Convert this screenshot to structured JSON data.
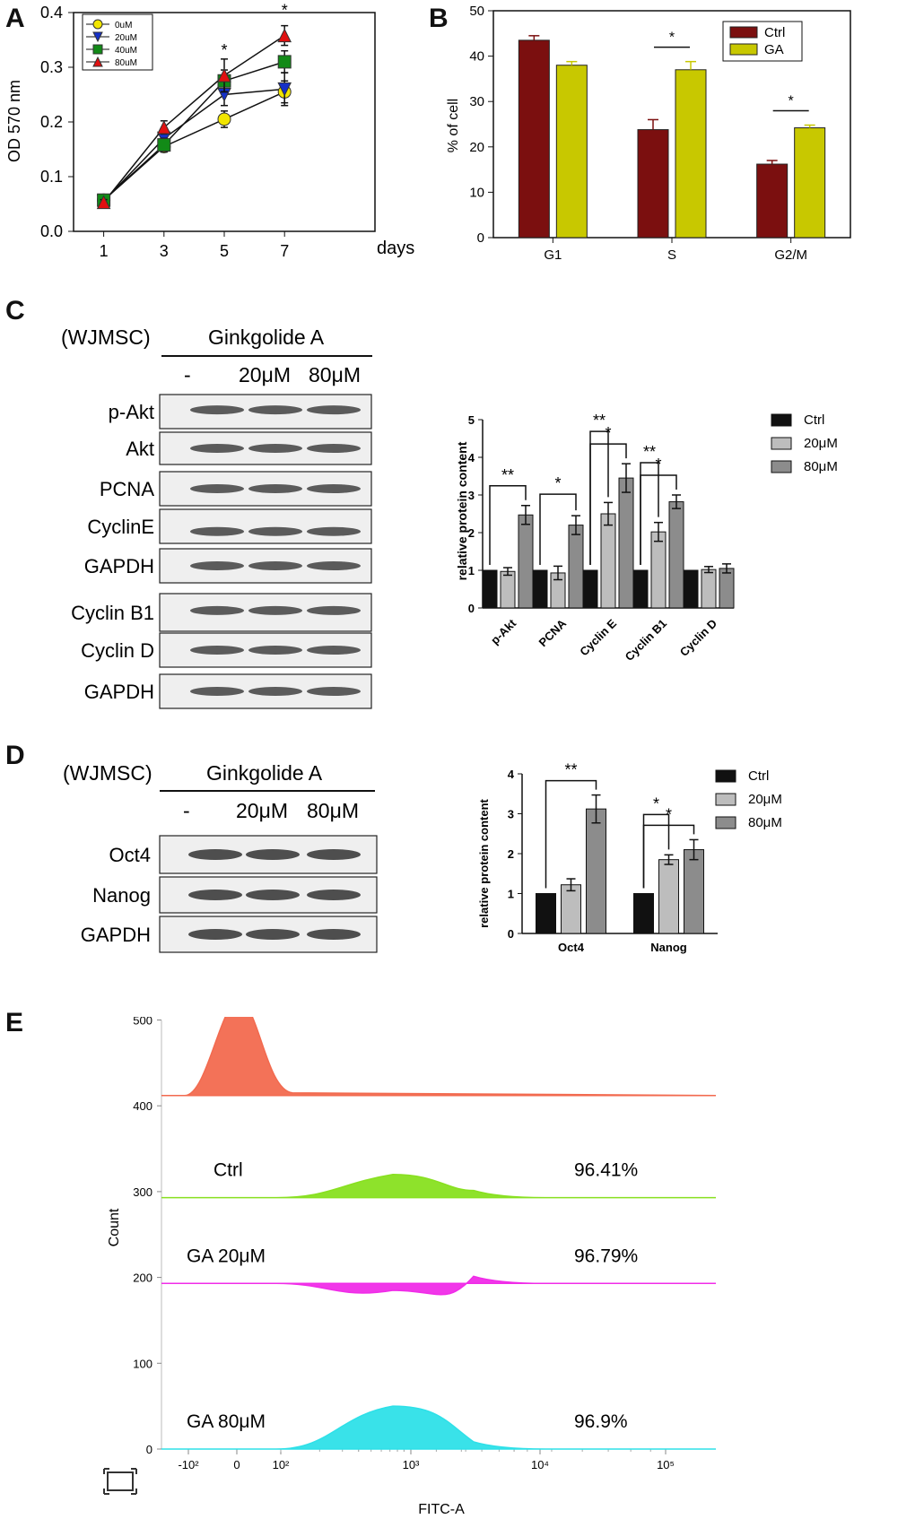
{
  "panels": {
    "A": "A",
    "B": "B",
    "C": "C",
    "D": "D",
    "E": "E"
  },
  "chart_data": [
    {
      "id": "A",
      "type": "line",
      "ylabel": "OD 570 nm",
      "xlabel": "days",
      "x": [
        1,
        3,
        5,
        7
      ],
      "xlim": [
        0,
        10
      ],
      "ylim": [
        0,
        0.4
      ],
      "yticks": [
        "0.0",
        "0.1",
        "0.2",
        "0.3",
        "0.4"
      ],
      "legend_position": "top-left",
      "series": [
        {
          "name": "0uM",
          "values": [
            0.057,
            0.155,
            0.205,
            0.255
          ],
          "errors": [
            0.005,
            0.01,
            0.015,
            0.02
          ],
          "color": "#f2e600",
          "marker": "circle"
        },
        {
          "name": "20uM",
          "values": [
            0.055,
            0.17,
            0.25,
            0.26
          ],
          "errors": [
            0.005,
            0.01,
            0.02,
            0.03
          ],
          "color": "#1530c8",
          "marker": "triangle-down"
        },
        {
          "name": "40uM",
          "values": [
            0.057,
            0.158,
            0.275,
            0.31
          ],
          "errors": [
            0.005,
            0.012,
            0.02,
            0.02
          ],
          "color": "#128a17",
          "marker": "square"
        },
        {
          "name": "80uM",
          "values": [
            0.053,
            0.19,
            0.285,
            0.358
          ],
          "errors": [
            0.005,
            0.012,
            0.03,
            0.018
          ],
          "color": "#e01010",
          "marker": "triangle-up"
        }
      ],
      "annotations": [
        {
          "x": 5,
          "text": "*"
        },
        {
          "x": 7,
          "text": "*"
        }
      ]
    },
    {
      "id": "B",
      "type": "bar",
      "ylabel": "% of cell",
      "categories": [
        "G1",
        "S",
        "G2/M"
      ],
      "ylim": [
        0,
        50
      ],
      "yticks": [
        "0",
        "10",
        "20",
        "30",
        "40",
        "50"
      ],
      "legend_position": "top-right",
      "series": [
        {
          "name": "Ctrl",
          "values": [
            43.5,
            23.8,
            16.2
          ],
          "errors": [
            1.0,
            2.2,
            0.8
          ],
          "color": "#7b0f0f"
        },
        {
          "name": "GA",
          "values": [
            38.0,
            37.0,
            24.2
          ],
          "errors": [
            0.8,
            1.8,
            0.6
          ],
          "color": "#c8c800"
        }
      ],
      "annotations": [
        {
          "category": "S",
          "text": "*"
        },
        {
          "category": "G2/M",
          "text": "*"
        }
      ]
    },
    {
      "id": "C",
      "type": "bar",
      "ylabel": "relative protein content",
      "categories": [
        "p-Akt",
        "PCNA",
        "Cyclin E",
        "Cyclin B1",
        "Cyclin D"
      ],
      "ylim": [
        0,
        5
      ],
      "yticks": [
        "0",
        "1",
        "2",
        "3",
        "4",
        "5"
      ],
      "legend_position": "top-right",
      "series": [
        {
          "name": "Ctrl",
          "values": [
            1.0,
            1.0,
            1.0,
            1.0,
            1.0
          ],
          "errors": [
            0,
            0,
            0,
            0,
            0
          ],
          "color": "#111111"
        },
        {
          "name": "20μM",
          "values": [
            0.97,
            0.93,
            2.5,
            2.02,
            1.02
          ],
          "errors": [
            0.1,
            0.18,
            0.3,
            0.25,
            0.08
          ],
          "color": "#bdbdbd"
        },
        {
          "name": "80μM",
          "values": [
            2.47,
            2.2,
            3.45,
            2.82,
            1.05
          ],
          "errors": [
            0.25,
            0.25,
            0.38,
            0.18,
            0.12
          ],
          "color": "#8c8c8c"
        }
      ],
      "annotations": [
        "**",
        "*",
        "**",
        "*",
        "**",
        "*"
      ]
    },
    {
      "id": "D",
      "type": "bar",
      "ylabel": "relative protein content",
      "categories": [
        "Oct4",
        "Nanog"
      ],
      "ylim": [
        0,
        4
      ],
      "yticks": [
        "0",
        "1",
        "2",
        "3",
        "4"
      ],
      "legend_position": "top-right",
      "series": [
        {
          "name": "Ctrl",
          "values": [
            1.0,
            1.0
          ],
          "errors": [
            0,
            0
          ],
          "color": "#111111"
        },
        {
          "name": "20μM",
          "values": [
            1.22,
            1.85
          ],
          "errors": [
            0.15,
            0.12
          ],
          "color": "#bdbdbd"
        },
        {
          "name": "80μM",
          "values": [
            3.12,
            2.1
          ],
          "errors": [
            0.35,
            0.25
          ],
          "color": "#8c8c8c"
        }
      ],
      "annotations": [
        "**",
        "*",
        "*"
      ]
    },
    {
      "id": "E",
      "type": "area",
      "ylabel": "Count",
      "xlabel": "FITC-A",
      "yticks": [
        "0",
        "100",
        "200",
        "300",
        "400",
        "500"
      ],
      "xticks": [
        "-10²",
        "0",
        "10²",
        "10³",
        "10⁴",
        "10⁵"
      ],
      "series": [
        {
          "name": "",
          "color": "#f26a4f",
          "peak_count": 522
        },
        {
          "name": "Ctrl",
          "percent": "96.41%",
          "color": "#88e020",
          "peak_count": 320
        },
        {
          "name": "GA 20μM",
          "percent": "96.79%",
          "color": "#f02ce8",
          "peak_count": 185
        },
        {
          "name": "GA 80μM",
          "percent": "96.9%",
          "color": "#2ee0e8",
          "peak_count": 50
        }
      ]
    }
  ],
  "blots": {
    "C": {
      "cell": "(WJMSC)",
      "treatment": "Ginkgolide A",
      "lanes": [
        "-",
        "20μM",
        "80μM"
      ],
      "rows": [
        "p-Akt",
        "Akt",
        "PCNA",
        "CyclinE",
        "GAPDH",
        "Cyclin B1",
        "Cyclin D",
        "GAPDH"
      ]
    },
    "D": {
      "cell": "(WJMSC)",
      "treatment": "Ginkgolide A",
      "lanes": [
        "-",
        "20μM",
        "80μM"
      ],
      "rows": [
        "Oct4",
        "Nanog",
        "GAPDH"
      ]
    }
  },
  "colors": {
    "axis": "#111111"
  }
}
